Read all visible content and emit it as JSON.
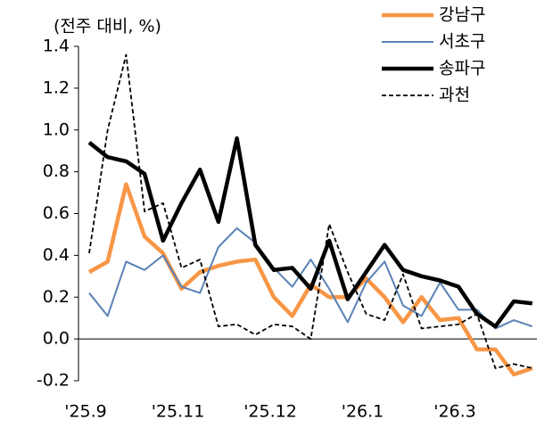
{
  "chart_data": {
    "type": "line",
    "y_label": "(전주 대비, %)",
    "categories": [
      "'25.9",
      null,
      null,
      null,
      null,
      "'25.11",
      null,
      null,
      null,
      null,
      "'25.12",
      null,
      null,
      null,
      null,
      "'26.1",
      null,
      null,
      null,
      null,
      "'26.3",
      null,
      null,
      null,
      null
    ],
    "series": [
      {
        "name": "강남구",
        "color": "#f79646",
        "linestyle": "thick",
        "values": [
          0.32,
          0.37,
          0.74,
          0.49,
          0.41,
          0.24,
          0.32,
          0.35,
          0.37,
          0.38,
          0.2,
          0.11,
          0.26,
          0.2,
          0.2,
          0.29,
          0.2,
          0.08,
          0.2,
          0.09,
          0.1,
          -0.05,
          -0.05,
          -0.17,
          -0.14
        ]
      },
      {
        "name": "서초구",
        "color": "#5a82b6",
        "linestyle": "thin",
        "values": [
          0.22,
          0.11,
          0.37,
          0.33,
          0.4,
          0.25,
          0.22,
          0.44,
          0.53,
          0.46,
          0.34,
          0.25,
          0.38,
          0.24,
          0.08,
          0.27,
          0.37,
          0.16,
          0.11,
          0.27,
          0.14,
          0.14,
          0.05,
          0.09,
          0.06
        ]
      },
      {
        "name": "송파구",
        "color": "#000000",
        "linestyle": "thick",
        "values": [
          0.94,
          0.87,
          0.85,
          0.79,
          0.47,
          0.65,
          0.81,
          0.56,
          0.96,
          0.45,
          0.33,
          0.34,
          0.24,
          0.47,
          0.19,
          0.32,
          0.45,
          0.33,
          0.3,
          0.28,
          0.25,
          0.12,
          0.06,
          0.18,
          0.17
        ]
      },
      {
        "name": "과천",
        "color": "#000000",
        "linestyle": "dashed",
        "values": [
          0.41,
          1.0,
          1.36,
          0.61,
          0.65,
          0.34,
          0.38,
          0.06,
          0.07,
          0.02,
          0.07,
          0.06,
          0.0,
          0.55,
          0.32,
          0.12,
          0.09,
          0.31,
          0.05,
          0.06,
          0.07,
          0.12,
          -0.14,
          -0.12,
          -0.14
        ]
      }
    ],
    "ylim": [
      -0.2,
      1.4
    ],
    "yticks": [
      -0.2,
      {
        "value": 0,
        "label": "0.0"
      },
      0.2,
      0.4,
      0.6,
      0.8,
      {
        "value": 1,
        "label": "1.0"
      },
      1.2,
      1.4
    ],
    "legend": "top-right"
  }
}
